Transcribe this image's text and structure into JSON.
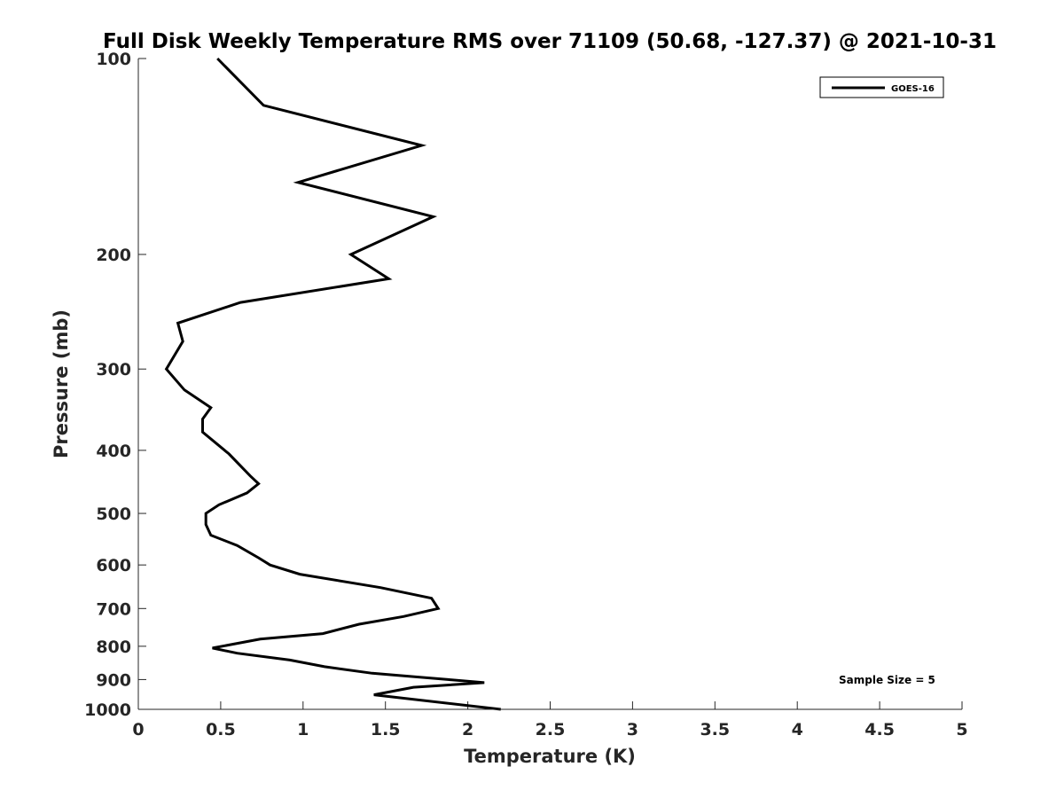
{
  "chart_data": {
    "type": "line",
    "title": "Full Disk Weekly Temperature RMS over 71109 (50.68, -127.37) @ 2021-10-31",
    "xlabel": "Temperature (K)",
    "ylabel": "Pressure (mb)",
    "xlim": [
      0,
      5
    ],
    "ylim": [
      100,
      1000
    ],
    "y_scale": "log",
    "y_reversed": true,
    "x_ticks": [
      0,
      0.5,
      1,
      1.5,
      2,
      2.5,
      3,
      3.5,
      4,
      4.5,
      5
    ],
    "x_tick_labels": [
      "0",
      "0.5",
      "1",
      "1.5",
      "2",
      "2.5",
      "3",
      "3.5",
      "4",
      "4.5",
      "5"
    ],
    "y_ticks": [
      100,
      200,
      300,
      400,
      500,
      600,
      700,
      800,
      900,
      1000
    ],
    "y_tick_labels": [
      "100",
      "200",
      "300",
      "400",
      "500",
      "600",
      "700",
      "800",
      "900",
      "1000"
    ],
    "grid": false,
    "legend_position": "top-right",
    "annotation": "Sample Size = 5",
    "series": [
      {
        "name": "GOES-16",
        "color": "#000000",
        "points": [
          [
            0.48,
            100
          ],
          [
            0.76,
            118
          ],
          [
            1.72,
            136
          ],
          [
            0.97,
            155
          ],
          [
            1.79,
            175
          ],
          [
            1.29,
            200
          ],
          [
            1.52,
            218
          ],
          [
            0.62,
            237
          ],
          [
            0.24,
            255
          ],
          [
            0.27,
            272
          ],
          [
            0.17,
            300
          ],
          [
            0.28,
            323
          ],
          [
            0.44,
            344
          ],
          [
            0.39,
            358
          ],
          [
            0.39,
            375
          ],
          [
            0.55,
            405
          ],
          [
            0.68,
            438
          ],
          [
            0.73,
            450
          ],
          [
            0.66,
            465
          ],
          [
            0.49,
            485
          ],
          [
            0.41,
            500
          ],
          [
            0.41,
            520
          ],
          [
            0.44,
            540
          ],
          [
            0.6,
            560
          ],
          [
            0.73,
            585
          ],
          [
            0.8,
            600
          ],
          [
            0.98,
            620
          ],
          [
            1.47,
            650
          ],
          [
            1.78,
            675
          ],
          [
            1.82,
            700
          ],
          [
            1.61,
            720
          ],
          [
            1.34,
            740
          ],
          [
            1.12,
            765
          ],
          [
            0.74,
            780
          ],
          [
            0.45,
            805
          ],
          [
            0.6,
            820
          ],
          [
            0.92,
            840
          ],
          [
            1.13,
            860
          ],
          [
            1.42,
            880
          ],
          [
            1.88,
            900
          ],
          [
            2.1,
            910
          ],
          [
            1.67,
            925
          ],
          [
            1.43,
            950
          ],
          [
            2.2,
            1000
          ]
        ]
      }
    ]
  }
}
